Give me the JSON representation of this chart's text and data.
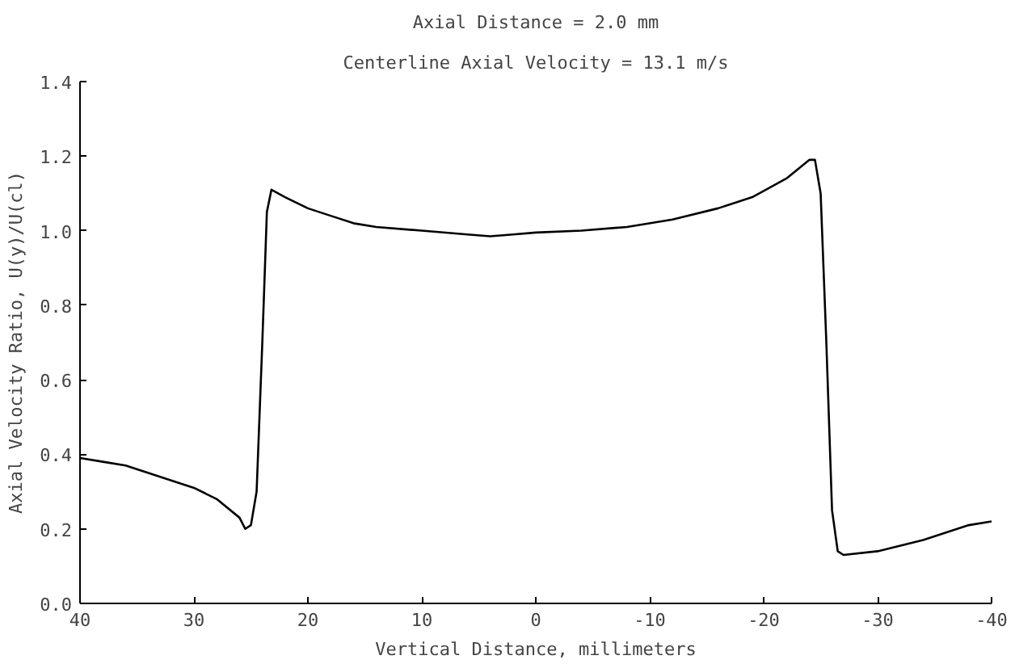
{
  "chart_data": {
    "type": "line",
    "title": "Axial Distance = 2.0 mm",
    "subtitle": "Centerline Axial Velocity = 13.1 m/s",
    "xlabel": "Vertical Distance, millimeters",
    "ylabel": "Axial Velocity Ratio, U(y)/U(cl)",
    "x": [
      40,
      38,
      36,
      34,
      32,
      30,
      28,
      26,
      25.5,
      25,
      24.5,
      24,
      23.6,
      23.2,
      22,
      20,
      18,
      16,
      14,
      10,
      6,
      4,
      2,
      0,
      -4,
      -8,
      -12,
      -16,
      -19,
      -22,
      -24,
      -24.5,
      -25,
      -25.5,
      -26,
      -26.5,
      -27,
      -30,
      -34,
      -38,
      -40
    ],
    "series": [
      {
        "color": "#000000",
        "values": [
          0.39,
          0.38,
          0.37,
          0.35,
          0.33,
          0.31,
          0.28,
          0.23,
          0.2,
          0.21,
          0.3,
          0.7,
          1.05,
          1.11,
          1.09,
          1.06,
          1.04,
          1.02,
          1.01,
          1.0,
          0.99,
          0.985,
          0.99,
          0.995,
          1.0,
          1.01,
          1.03,
          1.06,
          1.09,
          1.14,
          1.19,
          1.19,
          1.1,
          0.7,
          0.25,
          0.14,
          0.13,
          0.14,
          0.17,
          0.21,
          0.22
        ]
      }
    ],
    "xlim": [
      40,
      -40
    ],
    "xticks": [
      40,
      30,
      20,
      10,
      0,
      -10,
      -20,
      -30,
      -40
    ],
    "ylim": [
      0,
      1.4
    ],
    "yticks": [
      {
        "value": 0,
        "label": "0.0"
      },
      {
        "value": 0.2,
        "label": "0.2"
      },
      {
        "value": 0.4,
        "label": "0.4"
      },
      {
        "value": 0.6,
        "label": "0.6"
      },
      {
        "value": 0.8,
        "label": "0.8"
      },
      {
        "value": 1.0,
        "label": "1.0"
      },
      {
        "value": 1.2,
        "label": "1.2"
      },
      {
        "value": 1.4,
        "label": "1.4"
      }
    ],
    "grid": false,
    "marker": "none",
    "line_style": "solid"
  }
}
